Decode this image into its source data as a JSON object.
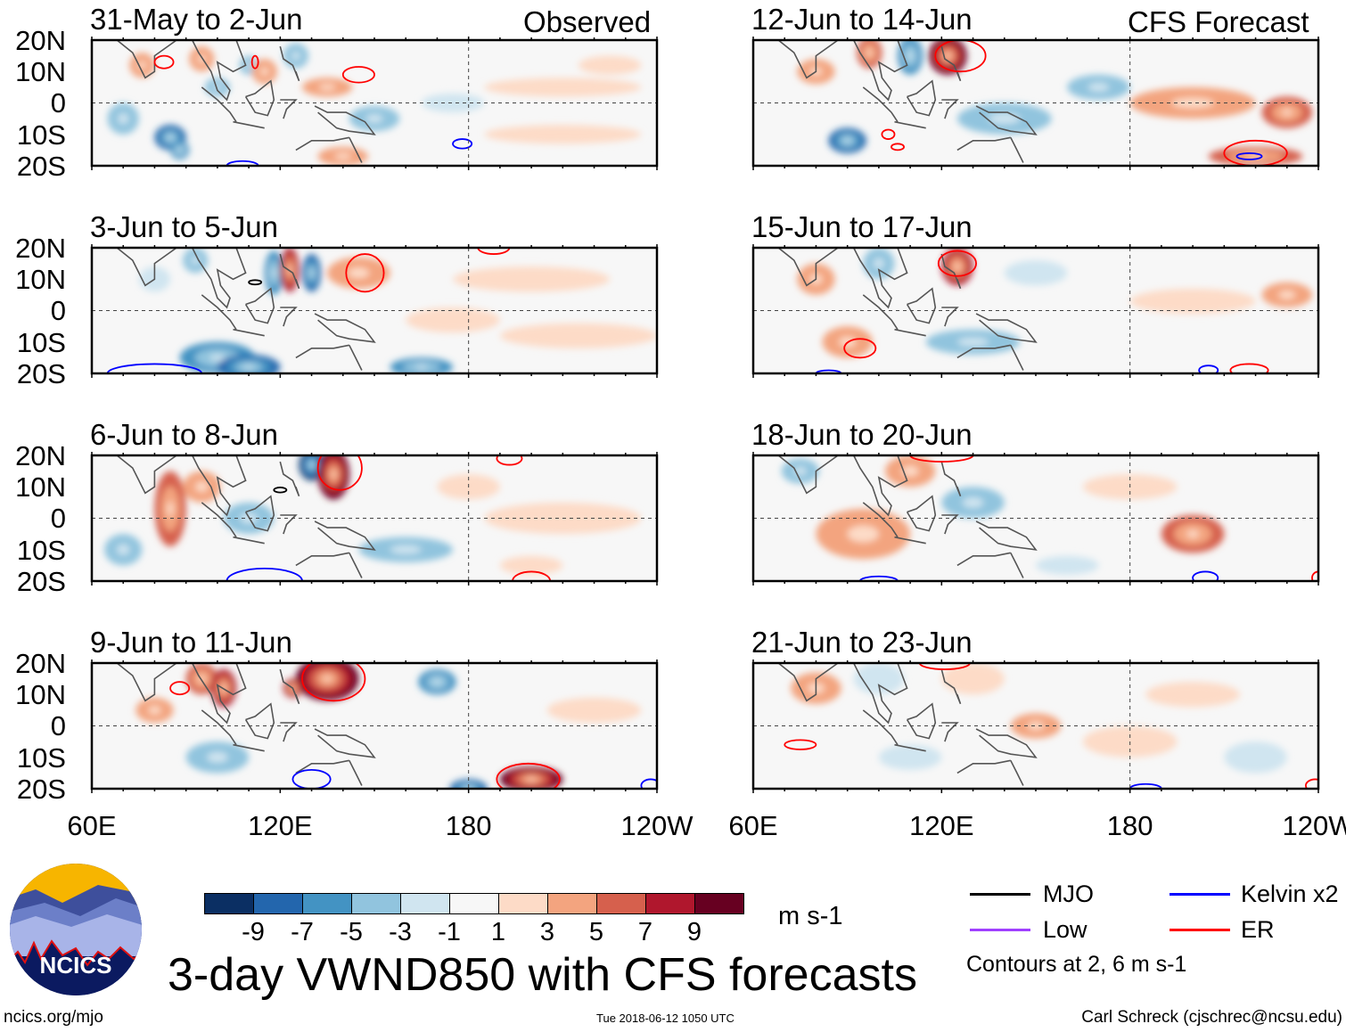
{
  "headers": {
    "left": "Observed",
    "right": "CFS Forecast"
  },
  "lat_labels": [
    "20N",
    "10N",
    "0",
    "10S",
    "20S"
  ],
  "lon_labels": [
    "60E",
    "120E",
    "180",
    "120W"
  ],
  "panels": [
    {
      "title": "31-May to 2-Jun",
      "column": "left",
      "anomalies": [
        [
          76,
          12,
          4,
          4,
          3
        ],
        [
          95,
          14,
          4,
          4,
          3
        ],
        [
          70,
          -5,
          5,
          5,
          -3
        ],
        [
          85,
          -11,
          5,
          4,
          -7
        ],
        [
          88,
          -15,
          3,
          3,
          -5
        ],
        [
          100,
          5,
          4,
          3,
          -3
        ],
        [
          110,
          12,
          3,
          3,
          -3
        ],
        [
          115,
          10,
          4,
          4,
          3
        ],
        [
          125,
          15,
          4,
          4,
          -3
        ],
        [
          135,
          5,
          8,
          3,
          3
        ],
        [
          150,
          -5,
          8,
          4,
          -3
        ],
        [
          140,
          -17,
          8,
          3,
          3
        ],
        [
          175,
          0,
          10,
          3,
          -2
        ],
        [
          210,
          5,
          25,
          3,
          2
        ],
        [
          210,
          -10,
          25,
          3,
          2
        ],
        [
          225,
          12,
          10,
          3,
          2
        ]
      ],
      "contours": [
        [
          83,
          13,
          3,
          2,
          "ER"
        ],
        [
          112,
          13,
          1,
          2,
          "ER"
        ],
        [
          145,
          9,
          5,
          2.5,
          "ER"
        ],
        [
          178,
          -13,
          3,
          1.5,
          "Kelvin"
        ],
        [
          108,
          -20,
          5,
          1.5,
          "Kelvin"
        ]
      ]
    },
    {
      "title": "3-Jun to 5-Jun",
      "column": "left",
      "anomalies": [
        [
          93,
          16,
          4,
          4,
          -3
        ],
        [
          118,
          12,
          3,
          7,
          -5
        ],
        [
          123,
          13,
          3,
          7,
          7
        ],
        [
          130,
          12,
          3,
          6,
          -7
        ],
        [
          145,
          12,
          10,
          5,
          3
        ],
        [
          100,
          -15,
          12,
          5,
          -5
        ],
        [
          110,
          -18,
          10,
          4,
          -7
        ],
        [
          165,
          -18,
          10,
          3,
          -5
        ],
        [
          175,
          -3,
          15,
          4,
          2
        ],
        [
          200,
          10,
          25,
          4,
          2
        ],
        [
          215,
          -8,
          25,
          4,
          2
        ],
        [
          80,
          10,
          5,
          4,
          -2
        ]
      ],
      "contours": [
        [
          147,
          12,
          6,
          6,
          "ER"
        ],
        [
          188,
          20,
          5,
          2,
          "ER"
        ],
        [
          80,
          -20,
          15,
          3,
          "Kelvin"
        ],
        [
          112,
          9,
          2,
          0.7,
          "MJO"
        ]
      ]
    },
    {
      "title": "6-Jun to 8-Jun",
      "column": "left",
      "anomalies": [
        [
          85,
          3,
          5,
          12,
          5
        ],
        [
          95,
          10,
          6,
          5,
          3
        ],
        [
          130,
          17,
          4,
          5,
          -9
        ],
        [
          137,
          14,
          5,
          8,
          9
        ],
        [
          160,
          -10,
          15,
          4,
          -3
        ],
        [
          110,
          0,
          8,
          5,
          -3
        ],
        [
          210,
          0,
          25,
          5,
          2
        ],
        [
          200,
          -15,
          10,
          3,
          2
        ],
        [
          70,
          -10,
          6,
          5,
          -3
        ],
        [
          180,
          10,
          10,
          4,
          2
        ]
      ],
      "contours": [
        [
          139,
          16,
          7,
          7,
          "ER"
        ],
        [
          120,
          9,
          2,
          0.8,
          "MJO"
        ],
        [
          115,
          -20,
          12,
          4,
          "Kelvin"
        ],
        [
          200,
          -20,
          6,
          3,
          "ER"
        ],
        [
          193,
          19,
          4,
          2,
          "ER"
        ]
      ]
    },
    {
      "title": "9-Jun to 11-Jun",
      "column": "left",
      "anomalies": [
        [
          95,
          15,
          5,
          5,
          5
        ],
        [
          102,
          12,
          4,
          6,
          7
        ],
        [
          135,
          15,
          10,
          7,
          9
        ],
        [
          124,
          12,
          3,
          3,
          7
        ],
        [
          80,
          5,
          6,
          4,
          3
        ],
        [
          170,
          14,
          6,
          4,
          -5
        ],
        [
          200,
          -17,
          10,
          4,
          9
        ],
        [
          180,
          -20,
          6,
          3,
          -7
        ],
        [
          100,
          -10,
          10,
          5,
          -3
        ],
        [
          220,
          5,
          15,
          4,
          2
        ]
      ],
      "contours": [
        [
          137,
          15,
          10,
          7,
          "ER"
        ],
        [
          88,
          12,
          3,
          2,
          "ER"
        ],
        [
          199,
          -17,
          10,
          5,
          "ER"
        ],
        [
          130,
          -17,
          6,
          3,
          "Kelvin"
        ],
        [
          238,
          -19,
          3,
          2,
          "Kelvin"
        ]
      ]
    },
    {
      "title": "12-Jun to 14-Jun",
      "column": "right",
      "anomalies": [
        [
          97,
          16,
          4,
          5,
          5
        ],
        [
          122,
          15,
          6,
          6,
          9
        ],
        [
          110,
          15,
          4,
          6,
          -5
        ],
        [
          80,
          10,
          6,
          4,
          3
        ],
        [
          90,
          -12,
          6,
          4,
          -7
        ],
        [
          140,
          -5,
          15,
          5,
          -3
        ],
        [
          170,
          5,
          10,
          4,
          -3
        ],
        [
          200,
          0,
          20,
          5,
          3
        ],
        [
          230,
          -3,
          8,
          5,
          5
        ],
        [
          220,
          -17,
          15,
          3,
          5
        ]
      ],
      "contours": [
        [
          126,
          15,
          8,
          5,
          "ER"
        ],
        [
          103,
          -10,
          2,
          1.5,
          "ER"
        ],
        [
          106,
          -14,
          2,
          1,
          "ER"
        ],
        [
          220,
          -16,
          10,
          4,
          "ER"
        ],
        [
          218,
          -17,
          4,
          1,
          "Kelvin"
        ]
      ]
    },
    {
      "title": "15-Jun to 17-Jun",
      "column": "right",
      "anomalies": [
        [
          125,
          14,
          5,
          6,
          7
        ],
        [
          100,
          15,
          5,
          5,
          -3
        ],
        [
          80,
          10,
          6,
          5,
          3
        ],
        [
          90,
          -10,
          8,
          5,
          3
        ],
        [
          130,
          -10,
          15,
          4,
          -3
        ],
        [
          200,
          3,
          20,
          4,
          2
        ],
        [
          230,
          5,
          8,
          4,
          3
        ],
        [
          150,
          12,
          10,
          4,
          -2
        ]
      ],
      "contours": [
        [
          125,
          15,
          6,
          4,
          "ER"
        ],
        [
          94,
          -12,
          5,
          3,
          "ER"
        ],
        [
          218,
          -19,
          6,
          2,
          "ER"
        ],
        [
          205,
          -19,
          3,
          1.5,
          "Kelvin"
        ],
        [
          84,
          -20,
          4,
          1,
          "Kelvin"
        ]
      ]
    },
    {
      "title": "18-Jun to 20-Jun",
      "column": "right",
      "anomalies": [
        [
          95,
          -5,
          15,
          8,
          3
        ],
        [
          110,
          15,
          8,
          5,
          3
        ],
        [
          130,
          5,
          10,
          5,
          -3
        ],
        [
          200,
          -5,
          10,
          6,
          5
        ],
        [
          180,
          10,
          15,
          4,
          2
        ],
        [
          160,
          -15,
          10,
          3,
          -2
        ],
        [
          75,
          15,
          6,
          4,
          -3
        ]
      ],
      "contours": [
        [
          120,
          20,
          10,
          2,
          "ER"
        ],
        [
          100,
          -20,
          6,
          1.5,
          "Kelvin"
        ],
        [
          204,
          -19,
          4,
          2,
          "Kelvin"
        ],
        [
          240,
          -19,
          2,
          2,
          "ER"
        ]
      ]
    },
    {
      "title": "21-Jun to 23-Jun",
      "column": "right",
      "anomalies": [
        [
          80,
          12,
          8,
          5,
          3
        ],
        [
          100,
          15,
          8,
          5,
          -2
        ],
        [
          130,
          15,
          10,
          5,
          2
        ],
        [
          150,
          0,
          8,
          4,
          3
        ],
        [
          180,
          -5,
          15,
          5,
          2
        ],
        [
          200,
          10,
          15,
          4,
          2
        ],
        [
          110,
          -10,
          10,
          4,
          -2
        ],
        [
          220,
          -10,
          10,
          5,
          -2
        ]
      ],
      "contours": [
        [
          75,
          -6,
          5,
          1.5,
          "ER"
        ],
        [
          121,
          20,
          8,
          2,
          "ER"
        ],
        [
          185,
          -20,
          5,
          1.5,
          "Kelvin"
        ],
        [
          239,
          -19,
          3,
          2,
          "ER"
        ]
      ]
    }
  ],
  "colorbar": {
    "ticks": [
      "-9",
      "-7",
      "-5",
      "-3",
      "-1",
      "1",
      "3",
      "5",
      "7",
      "9"
    ],
    "colors": [
      "#0b2f63",
      "#2366ad",
      "#4393c3",
      "#91c4de",
      "#d0e5f0",
      "#f7f7f7",
      "#fddbc7",
      "#f3a47f",
      "#d6604d",
      "#b0172d",
      "#670021"
    ],
    "units": "m s-1"
  },
  "legend": {
    "items": [
      {
        "label": "MJO",
        "color": "#000000"
      },
      {
        "label": "Kelvin x2",
        "color": "#0000ff"
      },
      {
        "label": "Low",
        "color": "#a040ff"
      },
      {
        "label": "ER",
        "color": "#ff0000"
      }
    ],
    "note": "Contours at 2, 6 m s-1"
  },
  "title": "3-day VWND850 with CFS forecasts",
  "logo_text": "NCICS",
  "footer": {
    "left": "ncics.org/mjo",
    "center": "Tue 2018-06-12 1050 UTC",
    "right": "Carl Schreck (cjschrec@ncsu.edu)"
  }
}
